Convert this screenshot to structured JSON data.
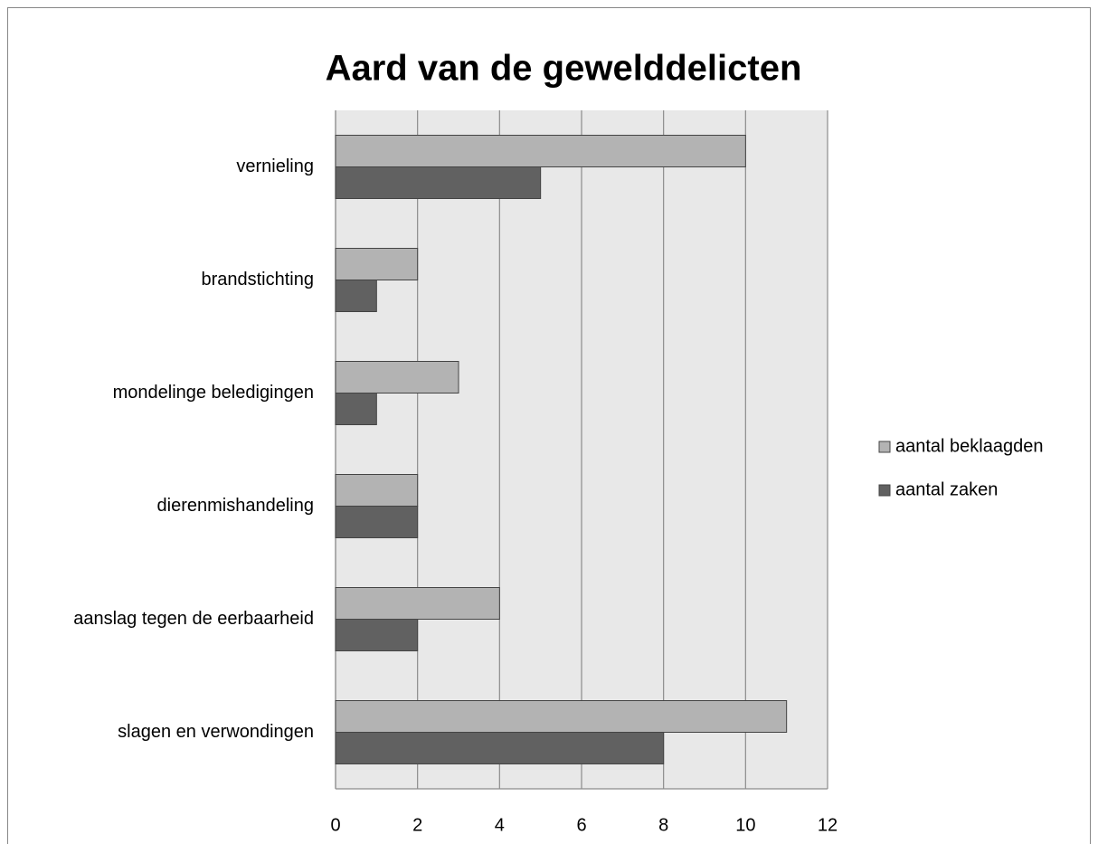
{
  "chart_data": {
    "type": "barh",
    "title": "Aard van de gewelddelicten",
    "categories": [
      "vernieling",
      "brandstichting",
      "mondelinge beledigingen",
      "dierenmishandeling",
      "aanslag tegen de eerbaarheid",
      "slagen en verwondingen"
    ],
    "series": [
      {
        "name": "aantal beklaagden",
        "color": "#b3b3b3",
        "values": [
          10,
          2,
          3,
          2,
          4,
          11
        ]
      },
      {
        "name": "aantal zaken",
        "color": "#616161",
        "values": [
          5,
          1,
          1,
          2,
          2,
          8
        ]
      }
    ],
    "xlim": [
      0,
      12
    ],
    "xticks": [
      0,
      2,
      4,
      6,
      8,
      10,
      12
    ],
    "grid": true,
    "legend": "right"
  }
}
